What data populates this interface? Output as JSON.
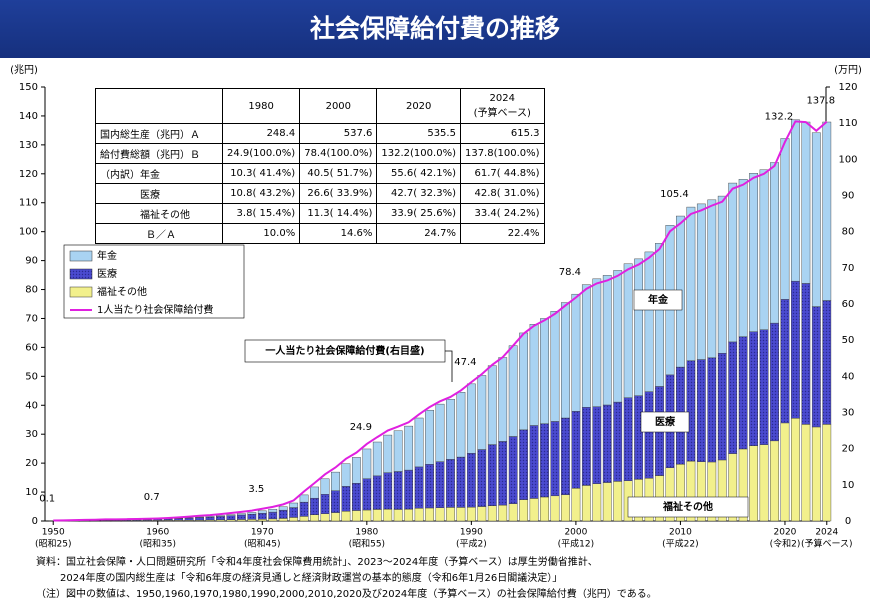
{
  "title": "社会保障給付費の推移",
  "chart_data": {
    "type": "stacked-bar-line",
    "y_label": "(兆円)",
    "y2_label": "(万円)",
    "x": [
      1950,
      1951,
      1952,
      1953,
      1954,
      1955,
      1956,
      1957,
      1958,
      1959,
      1960,
      1961,
      1962,
      1963,
      1964,
      1965,
      1966,
      1967,
      1968,
      1969,
      1970,
      1971,
      1972,
      1973,
      1974,
      1975,
      1976,
      1977,
      1978,
      1979,
      1980,
      1981,
      1982,
      1983,
      1984,
      1985,
      1986,
      1987,
      1988,
      1989,
      1990,
      1991,
      1992,
      1993,
      1994,
      1995,
      1996,
      1997,
      1998,
      1999,
      2000,
      2001,
      2002,
      2003,
      2004,
      2005,
      2006,
      2007,
      2008,
      2009,
      2010,
      2011,
      2012,
      2013,
      2014,
      2015,
      2016,
      2017,
      2018,
      2019,
      2020,
      2021,
      2022,
      2023,
      2024
    ],
    "series": [
      {
        "name": "年金",
        "color": "#a9d3f2",
        "values": [
          0.01,
          0.01,
          0.01,
          0.02,
          0.03,
          0.03,
          0.04,
          0.04,
          0.05,
          0.06,
          0.07,
          0.1,
          0.13,
          0.16,
          0.2,
          0.26,
          0.32,
          0.38,
          0.47,
          0.59,
          0.86,
          1.01,
          1.18,
          1.58,
          2.5,
          3.88,
          5.35,
          6.44,
          7.82,
          8.92,
          10.3,
          11.7,
          13.0,
          14.1,
          15.2,
          16.9,
          18.7,
          19.9,
          20.8,
          22.4,
          24.0,
          25.6,
          27.3,
          29.0,
          31.4,
          33.5,
          35.0,
          36.4,
          38.1,
          39.9,
          40.5,
          42.4,
          44.2,
          44.8,
          45.5,
          46.3,
          47.3,
          48.3,
          49.5,
          51.7,
          52.2,
          53.1,
          53.8,
          54.6,
          54.3,
          54.9,
          54.4,
          54.8,
          55.3,
          55.5,
          55.6,
          55.8,
          55.8,
          60.1,
          61.7
        ]
      },
      {
        "name": "医療",
        "color": "#4b4bd0",
        "values": [
          0.06,
          0.08,
          0.11,
          0.14,
          0.18,
          0.22,
          0.23,
          0.25,
          0.28,
          0.32,
          0.37,
          0.46,
          0.58,
          0.72,
          0.9,
          0.99,
          1.17,
          1.37,
          1.56,
          1.79,
          2.06,
          2.35,
          2.86,
          3.4,
          4.92,
          5.71,
          6.7,
          7.54,
          8.58,
          9.43,
          10.8,
          11.6,
          12.6,
          13.1,
          13.5,
          14.3,
          15.1,
          15.9,
          16.6,
          17.4,
          18.6,
          19.7,
          21.1,
          22.0,
          23.2,
          24.1,
          25.2,
          25.3,
          25.7,
          26.5,
          26.6,
          27.0,
          26.6,
          26.8,
          27.4,
          28.7,
          28.9,
          29.9,
          30.8,
          32.1,
          33.6,
          34.7,
          35.3,
          36.0,
          36.9,
          38.6,
          38.8,
          39.4,
          39.7,
          40.7,
          42.7,
          47.4,
          48.7,
          41.6,
          42.8
        ]
      },
      {
        "name": "福祉その他",
        "color": "#f2f08c",
        "values": [
          0.05,
          0.07,
          0.09,
          0.1,
          0.11,
          0.14,
          0.14,
          0.16,
          0.18,
          0.19,
          0.21,
          0.23,
          0.25,
          0.27,
          0.3,
          0.35,
          0.4,
          0.46,
          0.53,
          0.57,
          0.6,
          0.73,
          0.89,
          1.24,
          1.6,
          2.18,
          2.53,
          2.92,
          3.39,
          3.63,
          3.8,
          4.0,
          4.1,
          4.0,
          4.1,
          4.4,
          4.5,
          4.6,
          4.7,
          4.7,
          4.8,
          5.0,
          5.3,
          5.5,
          6.0,
          7.4,
          7.8,
          8.3,
          8.7,
          9.1,
          11.3,
          12.3,
          12.9,
          13.3,
          13.7,
          13.9,
          14.4,
          14.8,
          15.7,
          18.4,
          19.6,
          20.7,
          20.5,
          20.4,
          21.1,
          23.3,
          24.9,
          26.0,
          26.4,
          27.7,
          33.9,
          35.5,
          33.4,
          32.5,
          33.4
        ]
      },
      {
        "name": "1人当たり社会保障給付費",
        "color": "#e020e0",
        "axis": "y2",
        "values": [
          0.14,
          0.19,
          0.25,
          0.3,
          0.36,
          0.44,
          0.46,
          0.5,
          0.56,
          0.62,
          0.7,
          0.84,
          1.01,
          1.2,
          1.44,
          1.63,
          1.91,
          2.21,
          2.53,
          2.88,
          3.4,
          3.9,
          4.6,
          5.7,
          8.2,
          10.5,
          12.9,
          14.8,
          17.2,
          18.9,
          21.3,
          23.2,
          25.0,
          26.1,
          27.3,
          29.5,
          31.5,
          33.1,
          34.3,
          36.1,
          38.4,
          40.6,
          43.2,
          45.3,
          48.5,
          51.8,
          54.0,
          55.5,
          57.3,
          59.6,
          61.8,
          64.2,
          65.7,
          66.5,
          67.8,
          69.6,
          70.9,
          72.8,
          75.2,
          80.1,
          82.3,
          84.9,
          85.9,
          87.2,
          88.3,
          91.9,
          93.0,
          94.9,
          96.0,
          98.2,
          104.8,
          110.5,
          110.3,
          107.9,
          110.4
        ]
      }
    ],
    "totals": {
      "x": [
        1950,
        1960,
        1970,
        1980,
        1990,
        2000,
        2010,
        2020,
        2024
      ],
      "values": [
        0.1,
        0.7,
        3.5,
        24.9,
        47.4,
        78.4,
        105.4,
        132.2,
        137.8
      ]
    },
    "ylim": [
      0,
      150
    ],
    "yticks": [
      0,
      10,
      20,
      30,
      40,
      50,
      60,
      70,
      80,
      90,
      100,
      110,
      120,
      130,
      140,
      150
    ],
    "y2lim": [
      0,
      120
    ],
    "y2ticks": [
      0,
      10,
      20,
      30,
      40,
      50,
      60,
      70,
      80,
      90,
      100,
      110,
      120
    ],
    "xticks": [
      1950,
      1960,
      1970,
      1980,
      1990,
      2000,
      2010,
      2020,
      2024
    ],
    "xtick_sublabels": [
      "(昭和25)",
      "(昭和35)",
      "(昭和45)",
      "(昭和55)",
      "(平成2)",
      "(平成12)",
      "(平成22)",
      "(令和2)",
      "(予算ベース)"
    ],
    "annotation": "一人当たり社会保障給付費(右目盛)"
  },
  "table": {
    "columns": [
      "1980",
      "2000",
      "2020",
      "2024"
    ],
    "column_note": "(予算ベース)",
    "rows": [
      [
        "国内総生産（兆円）Ａ",
        "248.4",
        "537.6",
        "535.5",
        "615.3"
      ],
      [
        "給付費総額（兆円）Ｂ",
        "24.9(100.0%)",
        "78.4(100.0%)",
        "132.2(100.0%)",
        "137.8(100.0%)"
      ],
      [
        "（内訳）年金",
        "10.3( 41.4%)",
        "40.5( 51.7%)",
        "55.6( 42.1%)",
        "61.7( 44.8%)"
      ],
      [
        "医療",
        "10.8( 43.2%)",
        "26.6( 33.9%)",
        "42.7( 32.3%)",
        "42.8( 31.0%)"
      ],
      [
        "福祉その他",
        "3.8( 15.4%)",
        "11.3( 14.4%)",
        "33.9( 25.6%)",
        "33.4( 24.2%)"
      ],
      [
        "Ｂ／Ａ",
        "10.0%",
        "14.6%",
        "24.7%",
        "22.4%"
      ]
    ]
  },
  "notes": [
    "資料：国立社会保障・人口問題研究所「令和4年度社会保障費用統計」、2023～2024年度（予算ベース）は厚生労働省推計、",
    "2024年度の国内総生産は「令和6年度の経済見通しと経済財政運営の基本的態度（令和6年1月26日閣議決定）」",
    "（注）図中の数値は、1950,1960,1970,1980,1990,2000,2010,2020及び2024年度（予算ベース）の社会保障給付費（兆円）である。"
  ]
}
